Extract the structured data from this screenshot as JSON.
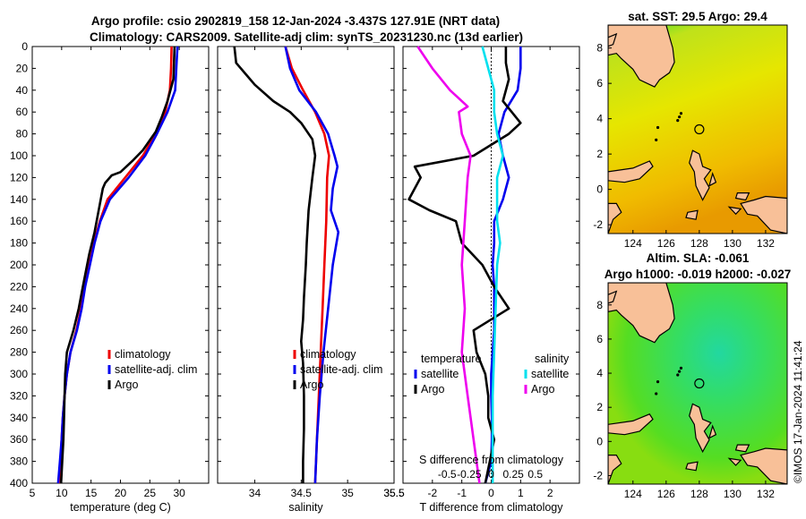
{
  "figure": {
    "title_line1": "Argo profile: csio 2902819_158 12-Jan-2024 -3.437S 127.91E (NRT data)",
    "title_line2": "Climatology: CARS2009. Satellite-adj clim: synTS_20231230.nc (13d earlier)",
    "side_label": "©IMOS 17-Jan-2024 11:41:24"
  },
  "colors": {
    "climatology": "#ee0000",
    "satellite": "#0000ee",
    "argo": "#000000",
    "sat_salinity": "#00e0ee",
    "argo_salinity": "#ee00ee",
    "land": "#f8c098",
    "ocean_warm": "#e8e400",
    "ocean_green": "#22dd44"
  },
  "chart_data": [
    {
      "type": "line",
      "id": "temperature",
      "xlabel": "temperature (deg C)",
      "xlim": [
        5,
        35
      ],
      "ylim": [
        400,
        0
      ],
      "xticks": [
        5,
        10,
        15,
        20,
        25,
        30
      ],
      "yticks": [
        0,
        20,
        40,
        60,
        80,
        100,
        120,
        140,
        160,
        180,
        200,
        220,
        240,
        260,
        280,
        300,
        320,
        340,
        360,
        380,
        400
      ],
      "legend": [
        "climatology",
        "satellite-adj. clim",
        "Argo"
      ],
      "series": [
        {
          "name": "climatology",
          "color": "#ee0000",
          "points": [
            [
              28.7,
              0
            ],
            [
              28.6,
              20
            ],
            [
              28.4,
              40
            ],
            [
              27.6,
              60
            ],
            [
              26.0,
              80
            ],
            [
              23.8,
              100
            ],
            [
              20.8,
              120
            ],
            [
              17.8,
              140
            ],
            [
              16.5,
              160
            ],
            [
              15.5,
              180
            ],
            [
              14.7,
              200
            ],
            [
              13.9,
              220
            ],
            [
              13.3,
              240
            ],
            [
              12.5,
              260
            ],
            [
              11.5,
              280
            ],
            [
              10.9,
              300
            ],
            [
              10.5,
              320
            ],
            [
              10.2,
              340
            ],
            [
              10.0,
              360
            ],
            [
              9.8,
              380
            ],
            [
              9.6,
              400
            ]
          ]
        },
        {
          "name": "satellite-adj. clim",
          "color": "#0000ee",
          "points": [
            [
              29.7,
              0
            ],
            [
              29.6,
              10
            ],
            [
              29.3,
              40
            ],
            [
              28.0,
              60
            ],
            [
              26.2,
              80
            ],
            [
              24.2,
              100
            ],
            [
              21.4,
              120
            ],
            [
              18.2,
              140
            ],
            [
              16.6,
              160
            ],
            [
              15.6,
              180
            ],
            [
              14.8,
              200
            ],
            [
              14.0,
              220
            ],
            [
              13.4,
              240
            ],
            [
              12.6,
              260
            ],
            [
              11.5,
              280
            ],
            [
              10.9,
              300
            ],
            [
              10.5,
              320
            ],
            [
              10.2,
              340
            ],
            [
              10.0,
              360
            ],
            [
              9.7,
              380
            ],
            [
              9.4,
              400
            ]
          ]
        },
        {
          "name": "Argo",
          "color": "#000000",
          "points": [
            [
              29.2,
              0
            ],
            [
              29.1,
              15
            ],
            [
              29.0,
              30
            ],
            [
              28.0,
              50
            ],
            [
              27.0,
              65
            ],
            [
              26.0,
              78
            ],
            [
              23.8,
              95
            ],
            [
              22.0,
              105
            ],
            [
              20.0,
              115
            ],
            [
              18.5,
              118
            ],
            [
              17.4,
              125
            ],
            [
              17.0,
              130
            ],
            [
              16.3,
              150
            ],
            [
              15.6,
              170
            ],
            [
              14.7,
              190
            ],
            [
              13.6,
              220
            ],
            [
              12.9,
              240
            ],
            [
              12.0,
              260
            ],
            [
              10.9,
              280
            ],
            [
              10.6,
              300
            ],
            [
              10.5,
              320
            ],
            [
              10.4,
              340
            ],
            [
              10.3,
              360
            ],
            [
              10.1,
              380
            ],
            [
              9.9,
              400
            ]
          ]
        }
      ]
    },
    {
      "type": "line",
      "id": "salinity",
      "xlabel": "salinity",
      "xlim": [
        33.6,
        35.5
      ],
      "ylim": [
        400,
        0
      ],
      "xticks": [
        34,
        34.5,
        35,
        35.5
      ],
      "legend": [
        "climatology",
        "satellite-adj. clim",
        "Argo"
      ],
      "series": [
        {
          "name": "climatology",
          "color": "#ee0000",
          "points": [
            [
              34.33,
              0
            ],
            [
              34.4,
              20
            ],
            [
              34.52,
              40
            ],
            [
              34.65,
              60
            ],
            [
              34.75,
              80
            ],
            [
              34.8,
              100
            ],
            [
              34.78,
              120
            ],
            [
              34.77,
              160
            ],
            [
              34.75,
              200
            ],
            [
              34.73,
              240
            ],
            [
              34.71,
              280
            ],
            [
              34.69,
              320
            ],
            [
              34.67,
              360
            ],
            [
              34.65,
              400
            ]
          ]
        },
        {
          "name": "satellite-adj. clim",
          "color": "#0000ee",
          "points": [
            [
              34.33,
              0
            ],
            [
              34.38,
              20
            ],
            [
              34.48,
              40
            ],
            [
              34.66,
              60
            ],
            [
              34.79,
              80
            ],
            [
              34.86,
              100
            ],
            [
              34.89,
              110
            ],
            [
              34.84,
              130
            ],
            [
              34.82,
              150
            ],
            [
              34.9,
              170
            ],
            [
              34.84,
              200
            ],
            [
              34.79,
              240
            ],
            [
              34.74,
              280
            ],
            [
              34.7,
              320
            ],
            [
              34.67,
              360
            ],
            [
              34.65,
              400
            ]
          ]
        },
        {
          "name": "Argo",
          "color": "#000000",
          "points": [
            [
              33.78,
              0
            ],
            [
              33.8,
              15
            ],
            [
              33.9,
              25
            ],
            [
              34.0,
              35
            ],
            [
              34.2,
              50
            ],
            [
              34.38,
              60
            ],
            [
              34.5,
              70
            ],
            [
              34.62,
              85
            ],
            [
              34.65,
              100
            ],
            [
              34.62,
              120
            ],
            [
              34.58,
              150
            ],
            [
              34.56,
              180
            ],
            [
              34.55,
              200
            ],
            [
              34.53,
              230
            ],
            [
              34.52,
              250
            ],
            [
              34.5,
              270
            ],
            [
              34.52,
              290
            ],
            [
              34.53,
              320
            ],
            [
              34.53,
              350
            ],
            [
              34.52,
              380
            ],
            [
              34.52,
              400
            ]
          ]
        }
      ]
    },
    {
      "type": "line",
      "id": "difference",
      "xlabel": "T difference from climatology",
      "xlabel2": "S difference from climatology",
      "xlim": [
        -3,
        3
      ],
      "ylim": [
        400,
        0
      ],
      "xticks": [
        -2,
        -1,
        0,
        1,
        2
      ],
      "xticks2_labels": [
        "-0.5",
        "-0.25",
        "0",
        "0.25",
        "0.5"
      ],
      "legend_left_title": "temperature",
      "legend_right_title": "salinity",
      "legend": [
        "satellite",
        "Argo",
        "satellite",
        "Argo"
      ],
      "series": [
        {
          "name": "T satellite",
          "color": "#0000ee",
          "points": [
            [
              1.0,
              0
            ],
            [
              1.0,
              20
            ],
            [
              0.9,
              40
            ],
            [
              0.45,
              60
            ],
            [
              0.25,
              80
            ],
            [
              0.4,
              100
            ],
            [
              0.6,
              120
            ],
            [
              0.4,
              140
            ],
            [
              0.1,
              160
            ],
            [
              0.1,
              180
            ],
            [
              0.05,
              200
            ],
            [
              0.1,
              220
            ],
            [
              0.1,
              240
            ],
            [
              0.1,
              260
            ],
            [
              0.05,
              280
            ],
            [
              0.0,
              300
            ],
            [
              0.0,
              320
            ],
            [
              0.02,
              340
            ],
            [
              0.02,
              360
            ],
            [
              0.0,
              380
            ],
            [
              -0.2,
              400
            ]
          ]
        },
        {
          "name": "T Argo",
          "color": "#000000",
          "points": [
            [
              0.5,
              0
            ],
            [
              0.5,
              15
            ],
            [
              0.6,
              30
            ],
            [
              0.4,
              50
            ],
            [
              1.0,
              70
            ],
            [
              0.6,
              80
            ],
            [
              -0.6,
              100
            ],
            [
              -2.6,
              110
            ],
            [
              -2.4,
              120
            ],
            [
              -2.8,
              140
            ],
            [
              -2.1,
              150
            ],
            [
              -1.2,
              160
            ],
            [
              -1.0,
              180
            ],
            [
              -0.3,
              200
            ],
            [
              0.1,
              220
            ],
            [
              0.6,
              240
            ],
            [
              -0.6,
              260
            ],
            [
              -0.5,
              280
            ],
            [
              -0.2,
              300
            ],
            [
              -0.1,
              320
            ],
            [
              -0.1,
              340
            ],
            [
              0.1,
              360
            ],
            [
              -0.05,
              380
            ],
            [
              -0.2,
              400
            ]
          ]
        },
        {
          "name": "S satellite",
          "color": "#00e0ee",
          "points": [
            [
              -0.3,
              0
            ],
            [
              -0.1,
              20
            ],
            [
              0.1,
              40
            ],
            [
              0.1,
              60
            ],
            [
              0.2,
              80
            ],
            [
              0.4,
              100
            ],
            [
              0.2,
              120
            ],
            [
              0.2,
              160
            ],
            [
              0.3,
              180
            ],
            [
              0.2,
              200
            ],
            [
              0.15,
              240
            ],
            [
              0.1,
              280
            ],
            [
              0.05,
              320
            ],
            [
              0.05,
              360
            ],
            [
              0.05,
              400
            ]
          ]
        },
        {
          "name": "S Argo",
          "color": "#ee00ee",
          "points": [
            [
              -2.5,
              0
            ],
            [
              -2.0,
              20
            ],
            [
              -1.4,
              40
            ],
            [
              -0.8,
              55
            ],
            [
              -1.1,
              60
            ],
            [
              -1.0,
              80
            ],
            [
              -0.7,
              100
            ],
            [
              -0.8,
              120
            ],
            [
              -0.9,
              160
            ],
            [
              -1.0,
              200
            ],
            [
              -0.9,
              240
            ],
            [
              -1.0,
              280
            ],
            [
              -0.8,
              320
            ],
            [
              -0.6,
              360
            ],
            [
              -0.4,
              400
            ]
          ]
        }
      ]
    },
    {
      "type": "heatmap",
      "id": "sst_map",
      "title": "sat. SST: 29.5 Argo: 29.4",
      "xticks": [
        124,
        126,
        128,
        130,
        132
      ],
      "yticks": [
        8,
        6,
        4,
        2,
        0,
        -2
      ],
      "xlim": [
        122.5,
        133.3
      ],
      "ylim": [
        -2.5,
        9.3
      ],
      "marker": [
        128.0,
        3.4
      ]
    },
    {
      "type": "heatmap",
      "id": "sla_map",
      "title_line1": "Altim. SLA: -0.061",
      "title_line2": "Argo h1000: -0.019 h2000: -0.027",
      "xticks": [
        124,
        126,
        128,
        130,
        132
      ],
      "yticks": [
        8,
        6,
        4,
        2,
        0,
        -2
      ],
      "xlim": [
        122.5,
        133.3
      ],
      "ylim": [
        -2.5,
        9.3
      ],
      "marker": [
        128.0,
        3.4
      ]
    }
  ]
}
